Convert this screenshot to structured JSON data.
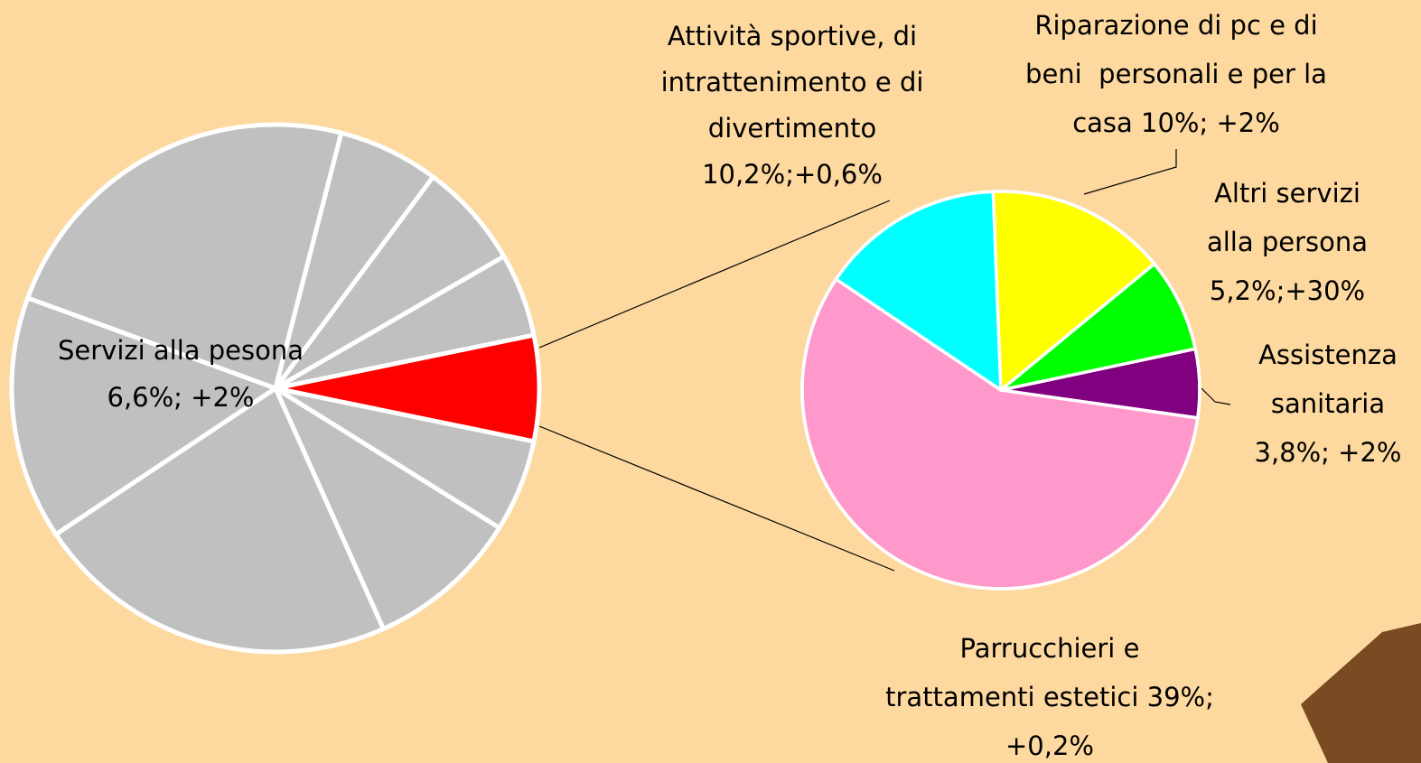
{
  "chart_data": {
    "type": "pie-of-pie",
    "main": {
      "values": [
        6.6,
        5.75,
        9.6,
        22.8,
        15.2,
        23.9,
        6.3,
        6.6,
        5.2
      ],
      "colors": [
        "#ff0000",
        "#c0c0c0",
        "#c0c0c0",
        "#c0c0c0",
        "#c0c0c0",
        "#c0c0c0",
        "#c0c0c0",
        "#c0c0c0",
        "#c0c0c0"
      ],
      "label": [
        "Servizi alla pesona",
        "6,6%; +2%"
      ]
    },
    "detail": {
      "values": [
        3.8,
        39,
        10.2,
        10,
        5.2
      ],
      "colors": [
        "#800080",
        "#ff99cc",
        "#00ffff",
        "#ffff00",
        "#00ff00"
      ],
      "labels": [
        [
          "Assistenza",
          "sanitaria",
          "3,8%; +2%"
        ],
        [
          "Parrucchieri e",
          "trattamenti estetici 39%;",
          "+0,2%"
        ],
        [
          "Attività sportive, di",
          "intrattenimento e di",
          "divertimento",
          "10,2%;+0,6%"
        ],
        [
          "Riparazione di pc e di",
          "beni  personali e per la",
          "casa 10%; +2%"
        ],
        [
          "Altri servizi",
          "alla persona",
          "5,2%;+30%"
        ]
      ]
    }
  }
}
